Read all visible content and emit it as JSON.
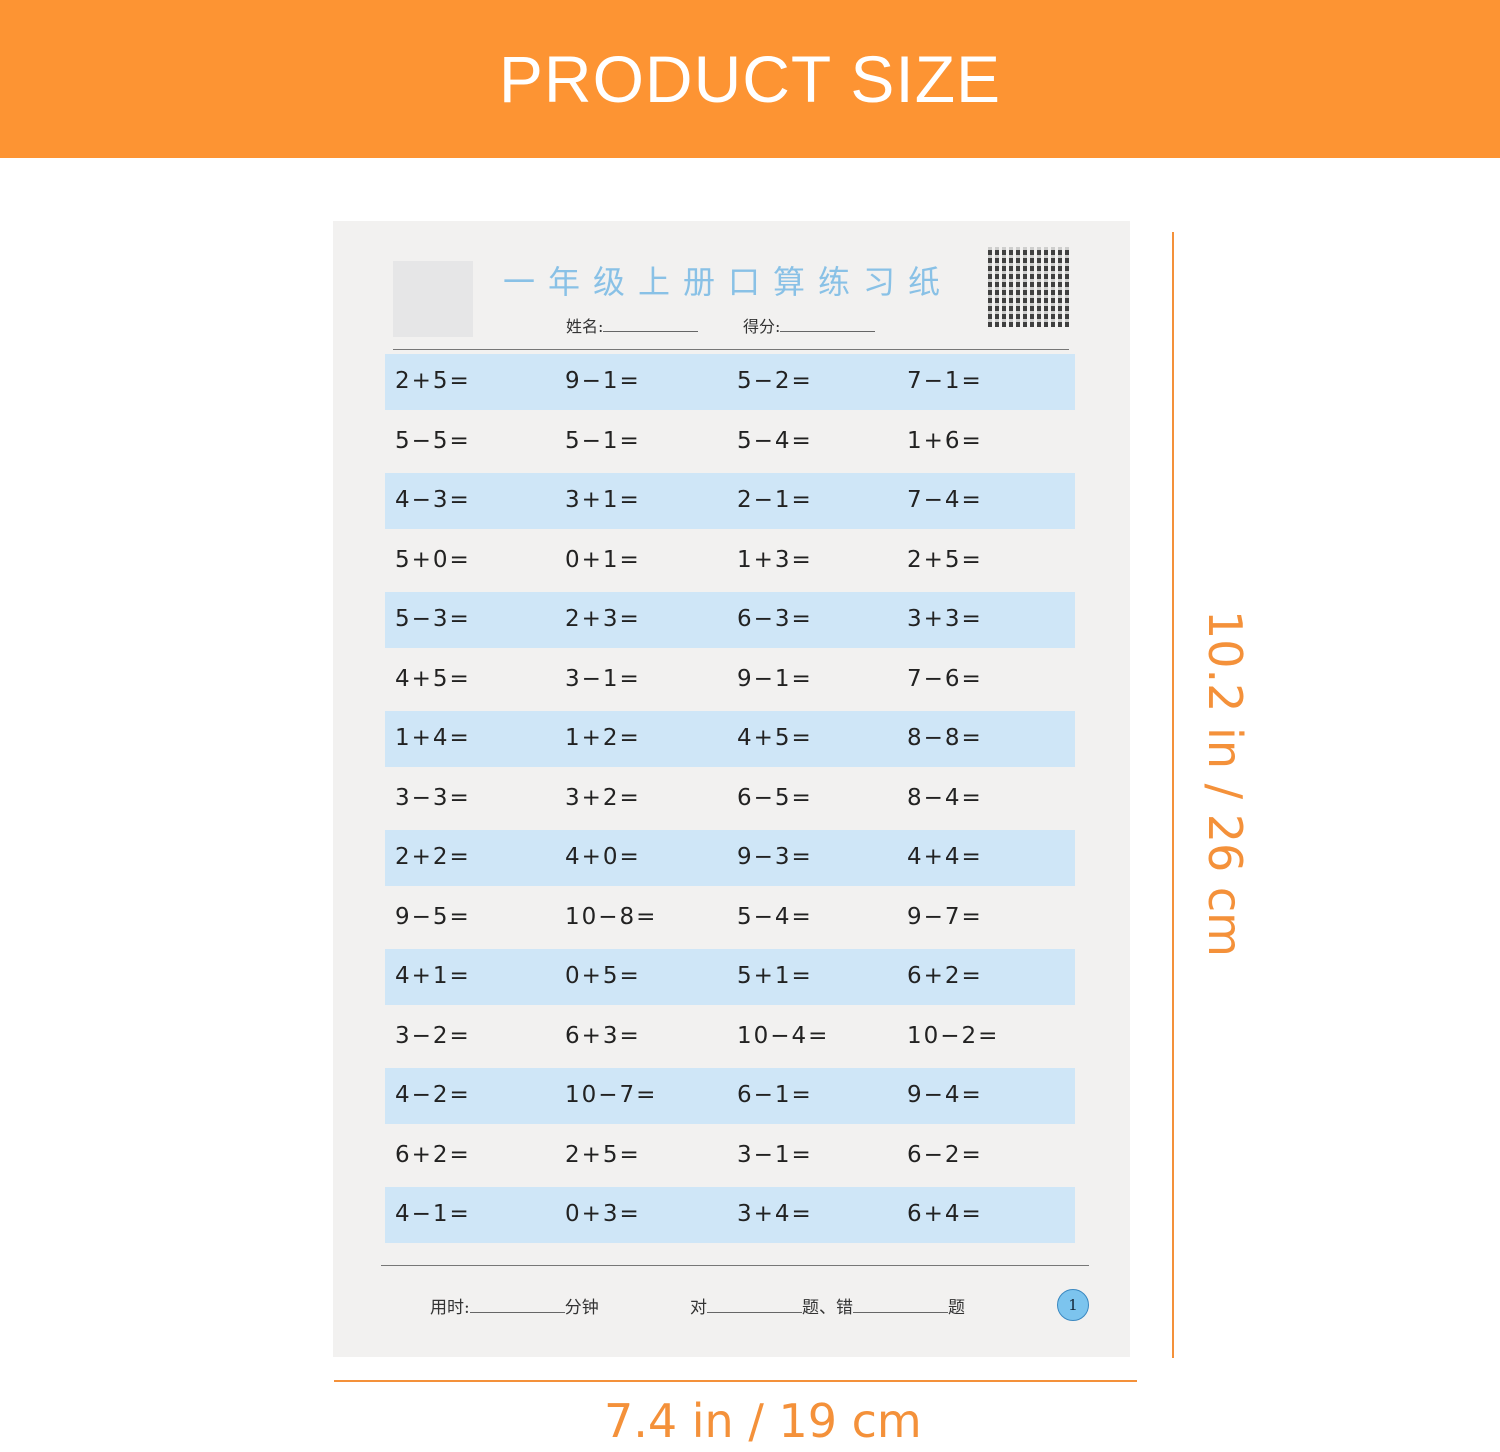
{
  "banner": {
    "title": "PRODUCT SIZE"
  },
  "sheet": {
    "title": "一年级上册口算练习纸",
    "name_label": "姓名:",
    "score_label": "得分:",
    "rows": [
      [
        "2+5=",
        "9−1=",
        "5−2=",
        "7−1="
      ],
      [
        "5−5=",
        "5−1=",
        "5−4=",
        "1+6="
      ],
      [
        "4−3=",
        "3+1=",
        "2−1=",
        "7−4="
      ],
      [
        "5+0=",
        "0+1=",
        "1+3=",
        "2+5="
      ],
      [
        "5−3=",
        "2+3=",
        "6−3=",
        "3+3="
      ],
      [
        "4+5=",
        "3−1=",
        "9−1=",
        "7−6="
      ],
      [
        "1+4=",
        "1+2=",
        "4+5=",
        "8−8="
      ],
      [
        "3−3=",
        "3+2=",
        "6−5=",
        "8−4="
      ],
      [
        "2+2=",
        "4+0=",
        "9−3=",
        "4+4="
      ],
      [
        "9−5=",
        "10−8=",
        "5−4=",
        "9−7="
      ],
      [
        "4+1=",
        "0+5=",
        "5+1=",
        "6+2="
      ],
      [
        "3−2=",
        "6+3=",
        "10−4=",
        "10−2="
      ],
      [
        "4−2=",
        "10−7=",
        "6−1=",
        "9−4="
      ],
      [
        "6+2=",
        "2+5=",
        "3−1=",
        "6−2="
      ],
      [
        "4−1=",
        "0+3=",
        "3+4=",
        "6+4="
      ]
    ],
    "footer": {
      "time_label": "用时:",
      "minutes_label": "分钟",
      "correct_label": "对",
      "wrong_label": "题、错",
      "questions_label": "题",
      "page_number": "1"
    }
  },
  "dimensions": {
    "height": "10.2 in / 26 cm",
    "width": "7.4 in / 19  cm"
  },
  "colors": {
    "banner": "#fd9433",
    "accent": "#f4913a",
    "row_highlight": "#cfe6f7"
  }
}
